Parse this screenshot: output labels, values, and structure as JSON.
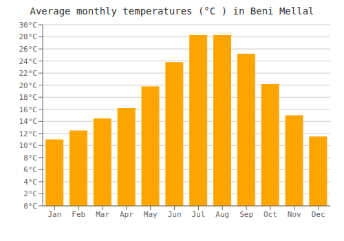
{
  "chart_data": {
    "type": "bar",
    "title": "Average monthly temperatures (°C ) in Beni Mellal",
    "categories": [
      "Jan",
      "Feb",
      "Mar",
      "Apr",
      "May",
      "Jun",
      "Jul",
      "Aug",
      "Sep",
      "Oct",
      "Nov",
      "Dec"
    ],
    "values": [
      11,
      12.5,
      14.5,
      16.2,
      19.8,
      23.8,
      28.3,
      28.3,
      25.2,
      20.2,
      15.0,
      11.5
    ],
    "color": "#FFA500",
    "ylim": [
      0,
      30
    ],
    "yticks": [
      {
        "value": 0,
        "label": "0°C"
      },
      {
        "value": 2,
        "label": "2°C"
      },
      {
        "value": 4,
        "label": "4°C"
      },
      {
        "value": 6,
        "label": "6°C"
      },
      {
        "value": 8,
        "label": "8°C"
      },
      {
        "value": 10,
        "label": "10°C"
      },
      {
        "value": 12,
        "label": "12°C"
      },
      {
        "value": 14,
        "label": "14°C"
      },
      {
        "value": 16,
        "label": "16°C"
      },
      {
        "value": 18,
        "label": "18°C"
      },
      {
        "value": 20,
        "label": "20°C"
      },
      {
        "value": 22,
        "label": "22°C"
      },
      {
        "value": 24,
        "label": "24°C"
      },
      {
        "value": 26,
        "label": "26°C"
      },
      {
        "value": 28,
        "label": "28°C"
      },
      {
        "value": 30,
        "label": "30°C"
      }
    ],
    "grid": true
  }
}
